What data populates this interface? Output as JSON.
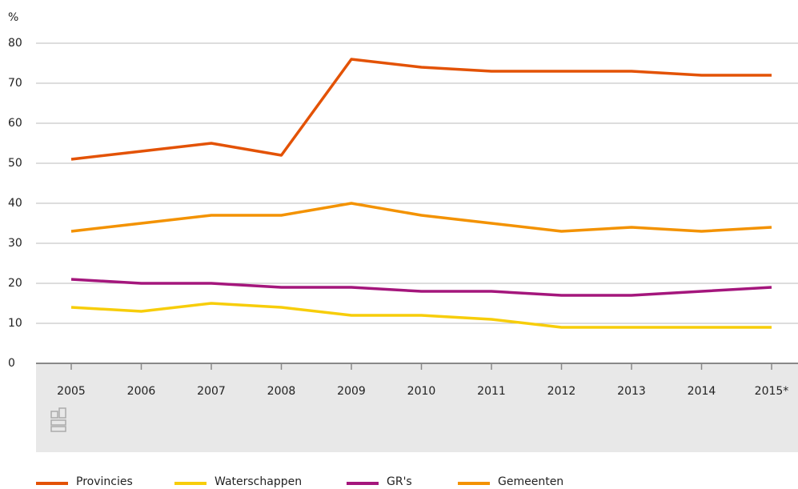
{
  "chart_data": {
    "type": "line",
    "y_label": "%",
    "categories": [
      "2005",
      "2006",
      "2007",
      "2008",
      "2009",
      "2010",
      "2011",
      "2012",
      "2013",
      "2014",
      "2015*"
    ],
    "series": [
      {
        "name": "Provincies",
        "color": "#e35205",
        "values": [
          51,
          53,
          55,
          52,
          76,
          74,
          73,
          73,
          73,
          72,
          72
        ]
      },
      {
        "name": "Waterschappen",
        "color": "#f7cd0a",
        "values": [
          14,
          13,
          15,
          14,
          12,
          12,
          11,
          9,
          9,
          9,
          9
        ]
      },
      {
        "name": "GR's",
        "color": "#a4167c",
        "values": [
          21,
          20,
          20,
          19,
          19,
          18,
          18,
          17,
          17,
          18,
          19
        ]
      },
      {
        "name": "Gemeenten",
        "color": "#f39200",
        "values": [
          33,
          35,
          37,
          37,
          40,
          37,
          35,
          33,
          34,
          33,
          34
        ]
      }
    ],
    "ylim": [
      0,
      80
    ],
    "yticks": [
      0,
      10,
      20,
      30,
      40,
      50,
      60,
      70,
      80
    ],
    "grid": true
  }
}
